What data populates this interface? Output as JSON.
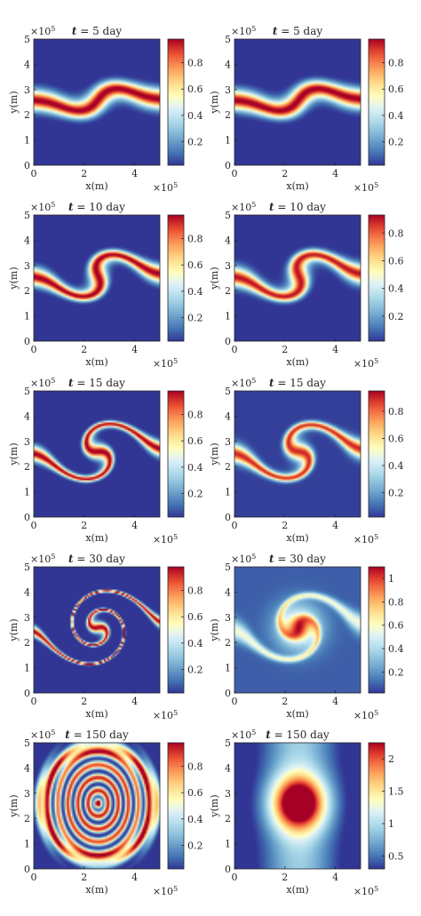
{
  "figure": {
    "rows": 5,
    "cols": 2
  },
  "chart_data": [
    {
      "type": "heatmap",
      "title": "t = 5 day",
      "title_var": "t",
      "title_rest": " = 5 day",
      "xlabel": "x(m)",
      "ylabel": "y(m)",
      "x_multiplier": "×10",
      "x_multiplier_exp": "5",
      "y_multiplier": "×10",
      "y_multiplier_exp": "5",
      "xlim": [
        0,
        5
      ],
      "ylim": [
        0,
        5
      ],
      "xticks": [
        "0",
        "2",
        "4"
      ],
      "yticks": [
        "0",
        "1",
        "2",
        "3",
        "4",
        "5"
      ],
      "colorbar": {
        "min": 0.02,
        "max": 0.98,
        "ticks": [
          "0.2",
          "0.4",
          "0.6",
          "0.8"
        ]
      },
      "colormap": "RdYlBu_r",
      "field": {
        "pattern": "filament",
        "wind": 0.9,
        "width": 0.38,
        "blur": 0.0,
        "peak": 1.0
      }
    },
    {
      "type": "heatmap",
      "title": "t = 5 day",
      "title_var": "t",
      "title_rest": " = 5 day",
      "xlabel": "x(m)",
      "ylabel": "y(m)",
      "x_multiplier": "×10",
      "x_multiplier_exp": "5",
      "y_multiplier": "×10",
      "y_multiplier_exp": "5",
      "xlim": [
        0,
        5
      ],
      "ylim": [
        0,
        5
      ],
      "xticks": [
        "0",
        "2",
        "4"
      ],
      "yticks": [
        "0",
        "1",
        "2",
        "3",
        "4",
        "5"
      ],
      "colorbar": {
        "min": 0.02,
        "max": 0.98,
        "ticks": [
          "0.2",
          "0.4",
          "0.6",
          "0.8"
        ]
      },
      "colormap": "RdYlBu_r",
      "field": {
        "pattern": "filament",
        "wind": 0.9,
        "width": 0.38,
        "blur": 0.0,
        "peak": 1.0
      }
    },
    {
      "type": "heatmap",
      "title": "t = 10 day",
      "title_var": "t",
      "title_rest": " = 10 day",
      "xlabel": "x(m)",
      "ylabel": "y(m)",
      "x_multiplier": "×10",
      "x_multiplier_exp": "5",
      "y_multiplier": "×10",
      "y_multiplier_exp": "5",
      "xlim": [
        0,
        5
      ],
      "ylim": [
        0,
        5
      ],
      "xticks": [
        "0",
        "2",
        "4"
      ],
      "yticks": [
        "0",
        "1",
        "2",
        "3",
        "4",
        "5"
      ],
      "colorbar": {
        "min": 0.02,
        "max": 0.98,
        "ticks": [
          "0.2",
          "0.4",
          "0.6",
          "0.8"
        ]
      },
      "colormap": "RdYlBu_r",
      "field": {
        "pattern": "filament",
        "wind": 2.0,
        "width": 0.33,
        "blur": 0.0,
        "peak": 1.0
      }
    },
    {
      "type": "heatmap",
      "title": "t = 10 day",
      "title_var": "t",
      "title_rest": " = 10 day",
      "xlabel": "x(m)",
      "ylabel": "y(m)",
      "x_multiplier": "×10",
      "x_multiplier_exp": "5",
      "y_multiplier": "×10",
      "y_multiplier_exp": "5",
      "xlim": [
        0,
        5
      ],
      "ylim": [
        0,
        5
      ],
      "xticks": [
        "0",
        "2",
        "4"
      ],
      "yticks": [
        "0",
        "1",
        "2",
        "3",
        "4",
        "5"
      ],
      "colorbar": {
        "min": 0.02,
        "max": 0.93,
        "ticks": [
          "0.2",
          "0.4",
          "0.6",
          "0.8"
        ]
      },
      "colormap": "RdYlBu_r",
      "field": {
        "pattern": "filament",
        "wind": 2.0,
        "width": 0.36,
        "blur": 0.15,
        "peak": 0.93
      }
    },
    {
      "type": "heatmap",
      "title": "t = 15 day",
      "title_var": "t",
      "title_rest": " = 15 day",
      "xlabel": "x(m)",
      "ylabel": "y(m)",
      "x_multiplier": "×10",
      "x_multiplier_exp": "5",
      "y_multiplier": "×10",
      "y_multiplier_exp": "5",
      "xlim": [
        0,
        5
      ],
      "ylim": [
        0,
        5
      ],
      "xticks": [
        "0",
        "2",
        "4"
      ],
      "yticks": [
        "0",
        "1",
        "2",
        "3",
        "4",
        "5"
      ],
      "colorbar": {
        "min": 0.02,
        "max": 0.98,
        "ticks": [
          "0.2",
          "0.4",
          "0.6",
          "0.8"
        ]
      },
      "colormap": "RdYlBu_r",
      "field": {
        "pattern": "filament",
        "wind": 3.2,
        "width": 0.28,
        "blur": 0.0,
        "peak": 1.0
      }
    },
    {
      "type": "heatmap",
      "title": "t = 15 day",
      "title_var": "t",
      "title_rest": " = 15 day",
      "xlabel": "x(m)",
      "ylabel": "y(m)",
      "x_multiplier": "×10",
      "x_multiplier_exp": "5",
      "y_multiplier": "×10",
      "y_multiplier_exp": "5",
      "xlim": [
        0,
        5
      ],
      "ylim": [
        0,
        5
      ],
      "xticks": [
        "0",
        "2",
        "4"
      ],
      "yticks": [
        "0",
        "1",
        "2",
        "3",
        "4",
        "5"
      ],
      "colorbar": {
        "min": 0.02,
        "max": 0.95,
        "ticks": [
          "0.2",
          "0.4",
          "0.6",
          "0.8"
        ]
      },
      "colormap": "RdYlBu_r",
      "field": {
        "pattern": "filament",
        "wind": 3.0,
        "width": 0.34,
        "blur": 0.35,
        "peak": 0.95
      }
    },
    {
      "type": "heatmap",
      "title": "t = 30 day",
      "title_var": "t",
      "title_rest": " = 30 day",
      "xlabel": "x(m)",
      "ylabel": "y(m)",
      "x_multiplier": "×10",
      "x_multiplier_exp": "5",
      "y_multiplier": "×10",
      "y_multiplier_exp": "5",
      "xlim": [
        0,
        5
      ],
      "ylim": [
        0,
        5
      ],
      "xticks": [
        "0",
        "2",
        "4"
      ],
      "yticks": [
        "0",
        "1",
        "2",
        "3",
        "4",
        "5"
      ],
      "colorbar": {
        "min": 0.02,
        "max": 0.98,
        "ticks": [
          "0.2",
          "0.4",
          "0.6",
          "0.8"
        ]
      },
      "colormap": "RdYlBu_r",
      "field": {
        "pattern": "filament",
        "wind": 6.5,
        "width": 0.2,
        "blur": 0.0,
        "peak": 1.0
      }
    },
    {
      "type": "heatmap",
      "title": "t = 30 day",
      "title_var": "t",
      "title_rest": " = 30 day",
      "xlabel": "x(m)",
      "ylabel": "y(m)",
      "x_multiplier": "×10",
      "x_multiplier_exp": "5",
      "y_multiplier": "×10",
      "y_multiplier_exp": "5",
      "xlim": [
        0,
        5
      ],
      "ylim": [
        0,
        5
      ],
      "xticks": [
        "0",
        "2",
        "4"
      ],
      "yticks": [
        "0",
        "1",
        "2",
        "3",
        "4",
        "5"
      ],
      "colorbar": {
        "min": 0.02,
        "max": 1.1,
        "ticks": [
          "0.2",
          "0.4",
          "0.6",
          "0.8",
          "1"
        ]
      },
      "colormap": "RdYlBu_r",
      "field": {
        "pattern": "blob",
        "wind": 4.5,
        "width": 0.4,
        "blur": 0.8,
        "peak": 1.1
      }
    },
    {
      "type": "heatmap",
      "title": "t = 150 day",
      "title_var": "t",
      "title_rest": " = 150 day",
      "xlabel": "x(m)",
      "ylabel": "y(m)",
      "x_multiplier": "×10",
      "x_multiplier_exp": "5",
      "y_multiplier": "×10",
      "y_multiplier_exp": "5",
      "xlim": [
        0,
        5
      ],
      "ylim": [
        0,
        5
      ],
      "xticks": [
        "0",
        "2",
        "4"
      ],
      "yticks": [
        "0",
        "1",
        "2",
        "3",
        "4",
        "5"
      ],
      "colorbar": {
        "min": 0.02,
        "max": 0.98,
        "ticks": [
          "0.2",
          "0.4",
          "0.6",
          "0.8"
        ]
      },
      "colormap": "RdYlBu_r",
      "field": {
        "pattern": "rings",
        "wind": 0,
        "width": 0.12,
        "blur": 0.0,
        "peak": 1.0
      }
    },
    {
      "type": "heatmap",
      "title": "t = 150 day",
      "title_var": "t",
      "title_rest": " = 150 day",
      "xlabel": "x(m)",
      "ylabel": "y(m)",
      "x_multiplier": "×10",
      "x_multiplier_exp": "5",
      "y_multiplier": "×10",
      "y_multiplier_exp": "5",
      "xlim": [
        0,
        5
      ],
      "ylim": [
        0,
        5
      ],
      "xticks": [
        "0",
        "2",
        "4"
      ],
      "yticks": [
        "0",
        "1",
        "2",
        "3",
        "4",
        "5"
      ],
      "colorbar": {
        "min": 0.3,
        "max": 2.25,
        "ticks": [
          "0.5",
          "1",
          "1.5",
          "2"
        ]
      },
      "colormap": "RdYlBu_r",
      "field": {
        "pattern": "diffuse",
        "wind": 0,
        "width": 1.0,
        "blur": 1.0,
        "peak": 2.25
      }
    }
  ]
}
